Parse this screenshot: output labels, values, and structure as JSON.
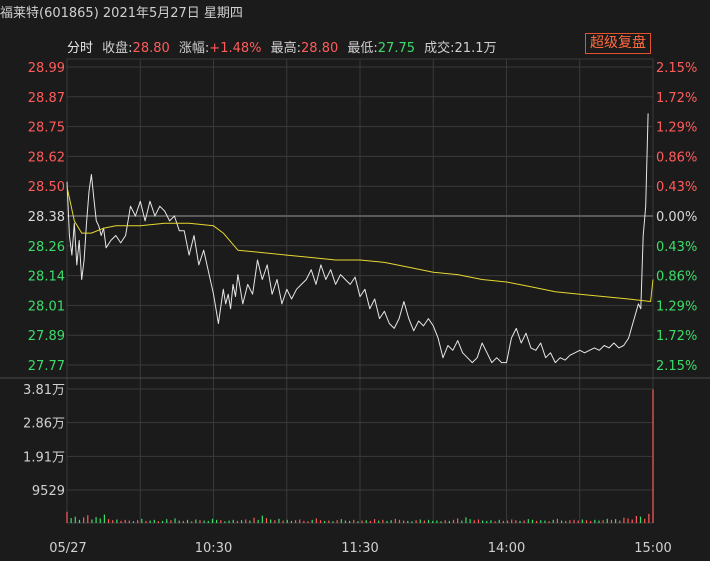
{
  "header": {
    "title": "福莱特(601865) 2021年5月27日 星期四",
    "mode_label": "分时",
    "close_label": "收盘:",
    "close_value": "28.80",
    "change_label": "涨幅:",
    "change_value": "+1.48%",
    "high_label": "最高:",
    "high_value": "28.80",
    "low_label": "最低:",
    "low_value": "27.75",
    "volume_label": "成交:",
    "volume_value": "21.1万",
    "super_button": "超级复盘"
  },
  "colors": {
    "price_line": "#e6e6e6",
    "avg_line": "#e6d830",
    "up": "#ff5b5b",
    "down": "#3ddc6a",
    "neutral": "#d8d8d8",
    "grid": "#3a3a3a",
    "volume_up": "#ff5b5b",
    "volume_down": "#3ddc6a"
  },
  "chart_data": {
    "type": "line",
    "base_price": 28.38,
    "ylim": [
      27.77,
      28.99
    ],
    "price_ticks": [
      "28.99",
      "28.87",
      "28.75",
      "28.62",
      "28.50",
      "28.38",
      "28.26",
      "28.14",
      "28.01",
      "27.89",
      "27.77"
    ],
    "pct_ticks": [
      "2.15%",
      "1.72%",
      "1.29%",
      "0.86%",
      "0.43%",
      "0.00%",
      "0.43%",
      "0.86%",
      "1.29%",
      "1.72%",
      "2.15%"
    ],
    "time_ticks": [
      "05/27",
      "10:30",
      "11:30",
      "14:00",
      "15:00"
    ],
    "time_tick_minutes": [
      0,
      60,
      120,
      180,
      240
    ],
    "series": [
      {
        "key": "price",
        "minutes": [
          0,
          1,
          2,
          3,
          4,
          5,
          6,
          7,
          8,
          9,
          10,
          11,
          12,
          13,
          14,
          15,
          16,
          18,
          20,
          22,
          24,
          26,
          28,
          30,
          32,
          34,
          36,
          38,
          40,
          42,
          44,
          46,
          48,
          50,
          52,
          54,
          56,
          58,
          60,
          62,
          64,
          65,
          66,
          67,
          68,
          69,
          70,
          72,
          74,
          76,
          78,
          80,
          82,
          84,
          86,
          88,
          90,
          92,
          94,
          96,
          98,
          100,
          102,
          104,
          106,
          108,
          110,
          112,
          114,
          116,
          118,
          120,
          122,
          124,
          126,
          128,
          130,
          132,
          134,
          136,
          138,
          140,
          142,
          144,
          146,
          148,
          150,
          152,
          154,
          156,
          158,
          160,
          162,
          164,
          166,
          168,
          170,
          172,
          174,
          176,
          178,
          180,
          182,
          184,
          186,
          188,
          190,
          192,
          194,
          196,
          198,
          200,
          202,
          204,
          206,
          208,
          210,
          212,
          214,
          216,
          218,
          220,
          222,
          224,
          226,
          228,
          230,
          232,
          234,
          235,
          236,
          237,
          238,
          239,
          240
        ],
        "values": [
          28.52,
          28.3,
          28.22,
          28.35,
          28.18,
          28.28,
          28.12,
          28.2,
          28.35,
          28.48,
          28.55,
          28.45,
          28.36,
          28.34,
          28.3,
          28.33,
          28.25,
          28.28,
          28.3,
          28.27,
          28.3,
          28.42,
          28.38,
          28.44,
          28.36,
          28.44,
          28.38,
          28.42,
          28.4,
          28.36,
          28.38,
          28.32,
          28.32,
          28.22,
          28.3,
          28.18,
          28.24,
          28.15,
          28.06,
          27.94,
          28.08,
          28.02,
          28.06,
          28.0,
          28.1,
          28.05,
          28.14,
          28.02,
          28.1,
          28.06,
          28.2,
          28.12,
          28.18,
          28.06,
          28.12,
          28.02,
          28.08,
          28.04,
          28.08,
          28.1,
          28.12,
          28.16,
          28.1,
          28.18,
          28.12,
          28.16,
          28.1,
          28.14,
          28.12,
          28.1,
          28.13,
          28.05,
          28.08,
          28.0,
          28.04,
          27.96,
          27.99,
          27.94,
          27.92,
          27.96,
          28.03,
          27.96,
          27.91,
          27.95,
          27.93,
          27.96,
          27.93,
          27.88,
          27.8,
          27.85,
          27.83,
          27.87,
          27.82,
          27.8,
          27.78,
          27.8,
          27.86,
          27.82,
          27.78,
          27.8,
          27.78,
          27.78,
          27.88,
          27.92,
          27.86,
          27.9,
          27.84,
          27.83,
          27.86,
          27.8,
          27.82,
          27.78,
          27.8,
          27.79,
          27.81,
          27.82,
          27.83,
          27.82,
          27.83,
          27.84,
          27.83,
          27.85,
          27.84,
          27.86,
          27.84,
          27.85,
          27.88,
          27.95,
          28.02,
          28.0,
          28.3,
          28.42,
          28.8
        ]
      },
      {
        "key": "average",
        "minutes": [
          0,
          3,
          6,
          10,
          15,
          20,
          30,
          40,
          50,
          60,
          64,
          70,
          80,
          90,
          100,
          110,
          120,
          130,
          140,
          150,
          160,
          170,
          180,
          190,
          200,
          210,
          220,
          230,
          239,
          240
        ],
        "values": [
          28.5,
          28.36,
          28.31,
          28.31,
          28.33,
          28.34,
          28.34,
          28.35,
          28.35,
          28.34,
          28.31,
          28.24,
          28.23,
          28.22,
          28.21,
          28.2,
          28.2,
          28.19,
          28.17,
          28.15,
          28.14,
          28.12,
          28.11,
          28.09,
          28.07,
          28.06,
          28.05,
          28.04,
          28.03,
          28.12
        ]
      }
    ],
    "volume": {
      "ticks": [
        "3.81万",
        "2.86万",
        "1.91万",
        "9529"
      ],
      "max": 38100,
      "bars": [
        3200,
        1400,
        1800,
        900,
        1600,
        2200,
        1000,
        1700,
        1300,
        2400,
        1100,
        800,
        1000,
        600,
        900,
        700,
        500,
        800,
        1200,
        600,
        700,
        900,
        500,
        600,
        1100,
        800,
        1300,
        700,
        600,
        900,
        500,
        1000,
        800,
        700,
        600,
        1200,
        900,
        800,
        500,
        700,
        900,
        600,
        800,
        1000,
        700,
        1500,
        900,
        2100,
        1400,
        1000,
        800,
        1200,
        700,
        900,
        600,
        800,
        1000,
        600,
        500,
        900,
        1300,
        800,
        600,
        700,
        500,
        800,
        1100,
        700,
        600,
        900,
        500,
        700,
        800,
        600,
        1100,
        700,
        900,
        600,
        800,
        1200,
        900,
        700,
        600,
        500,
        800,
        1000,
        700,
        900,
        600,
        700,
        500,
        800,
        600,
        900,
        1300,
        700,
        1600,
        1100,
        800,
        1000,
        700,
        600,
        800,
        500,
        900,
        600,
        700,
        1000,
        800,
        600,
        700,
        1100,
        900,
        600,
        800,
        700,
        500,
        900,
        1200,
        700,
        600,
        800,
        900,
        700,
        1000,
        800,
        600,
        900,
        700,
        800,
        1200,
        900,
        1100,
        700,
        1500,
        1300,
        1000,
        2000,
        1800,
        1200,
        2600,
        38000
      ]
    }
  }
}
